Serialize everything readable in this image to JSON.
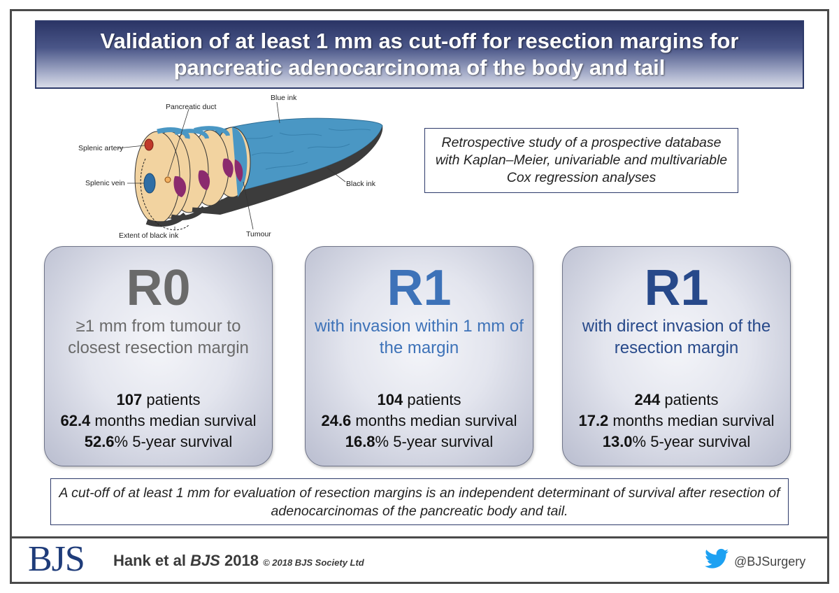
{
  "title": "Validation of at least 1 mm as cut-off for resection margins for pancreatic adenocarcinoma of the body and tail",
  "illustration": {
    "labels": {
      "pancreatic_duct": "Pancreatic duct",
      "blue_ink": "Blue ink",
      "splenic_artery": "Splenic artery",
      "splenic_vein": "Splenic vein",
      "black_ink": "Black ink",
      "extent_black_ink": "Extent of black ink",
      "tumour": "Tumour"
    },
    "colors": {
      "blue_ink": "#4a97c4",
      "tissue": "#f2d3a0",
      "tumour": "#8b2b6e",
      "black_ink": "#3a3a3a",
      "artery": "#c0392b",
      "vein": "#2f6ea5"
    }
  },
  "study_design": "Retrospective study of a prospective database with Kaplan–Meier, univariable and multivariable Cox regression analyses",
  "cards": [
    {
      "heading": "R0",
      "description": "≥1 mm from tumour to closest resection margin",
      "patients": "107",
      "patients_label": "patients",
      "median": "62.4",
      "median_label": "months median survival",
      "five_year": "52.6",
      "five_year_label": "% 5-year survival",
      "color": "#6a6a6a"
    },
    {
      "heading": "R1",
      "description": "with invasion within 1 mm of the margin",
      "patients": "104",
      "patients_label": "patients",
      "median": "24.6",
      "median_label": "months median survival",
      "five_year": "16.8",
      "five_year_label": "% 5-year survival",
      "color": "#3d72b8"
    },
    {
      "heading": "R1",
      "description": "with direct invasion of the resection margin",
      "patients": "244",
      "patients_label": "patients",
      "median": "17.2",
      "median_label": "months median survival",
      "five_year": "13.0",
      "five_year_label": "% 5-year survival",
      "color": "#27498a"
    }
  ],
  "conclusion": "A cut-off of at least 1 mm for evaluation of resection margins is an independent determinant of survival after resection of adenocarcinomas of the pancreatic body and tail.",
  "footer": {
    "logo": "BJS",
    "authors": "Hank et al",
    "journal": "BJS",
    "year": "2018",
    "copyright": "© 2018 BJS Society Ltd",
    "twitter_icon": "twitter-bird-icon",
    "handle": "@BJSurgery"
  }
}
